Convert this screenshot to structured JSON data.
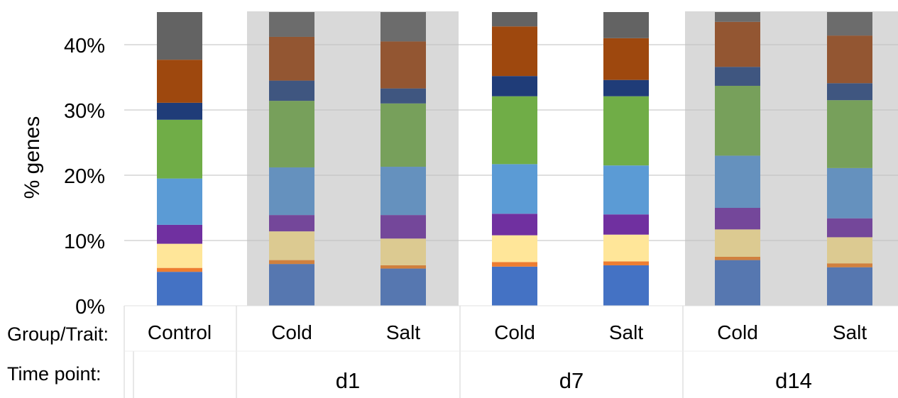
{
  "chart_data": {
    "type": "bar",
    "stacked": true,
    "ylabel": "% genes",
    "ylim": [
      0,
      45
    ],
    "y_ticks": [
      "0%",
      "10%",
      "20%",
      "30%",
      "40%"
    ],
    "y_tick_values": [
      0,
      10,
      20,
      30,
      40
    ],
    "grid": "horizontal",
    "row_labels": {
      "group": "Group/Trait:",
      "time": "Time point:"
    },
    "categories": [
      "Control",
      "Cold",
      "Salt",
      "Cold",
      "Salt",
      "Cold",
      "Salt"
    ],
    "time_points": [
      {
        "label": "",
        "shaded": false,
        "bars": [
          0
        ]
      },
      {
        "label": "d1",
        "shaded": true,
        "bars": [
          1,
          2
        ]
      },
      {
        "label": "d7",
        "shaded": false,
        "bars": [
          3,
          4
        ]
      },
      {
        "label": "d14",
        "shaded": true,
        "bars": [
          5,
          6
        ]
      }
    ],
    "series_colors": [
      "#4472C4",
      "#ED7D31",
      "#FFE699",
      "#7030A0",
      "#5B9BD5",
      "#70AD47",
      "#1F3C78",
      "#9E480E",
      "#636363"
    ],
    "shaded_series_colors": [
      "#5677B0",
      "#D0803E",
      "#DCCA91",
      "#74479A",
      "#6591BE",
      "#77A05B",
      "#3F5680",
      "#935632",
      "#6C6C6C"
    ],
    "series": [
      {
        "values": [
          5.2,
          6.4,
          5.7,
          6.0,
          6.2,
          7.0,
          5.9
        ]
      },
      {
        "values": [
          0.6,
          0.6,
          0.5,
          0.7,
          0.6,
          0.5,
          0.6
        ]
      },
      {
        "values": [
          3.7,
          4.4,
          4.1,
          4.1,
          4.1,
          4.2,
          4.0
        ]
      },
      {
        "values": [
          2.9,
          2.5,
          3.6,
          3.3,
          3.1,
          3.3,
          2.9
        ]
      },
      {
        "values": [
          7.1,
          7.3,
          7.4,
          7.6,
          7.5,
          8.0,
          7.7
        ]
      },
      {
        "values": [
          9.0,
          10.2,
          9.7,
          10.4,
          10.6,
          10.7,
          10.4
        ]
      },
      {
        "values": [
          2.6,
          3.1,
          2.3,
          3.1,
          2.5,
          2.9,
          2.6
        ]
      },
      {
        "values": [
          6.6,
          6.7,
          7.2,
          7.6,
          6.4,
          6.9,
          7.3
        ]
      },
      {
        "values": [
          7.3,
          3.8,
          4.5,
          2.2,
          4.0,
          1.5,
          3.6
        ]
      }
    ]
  }
}
